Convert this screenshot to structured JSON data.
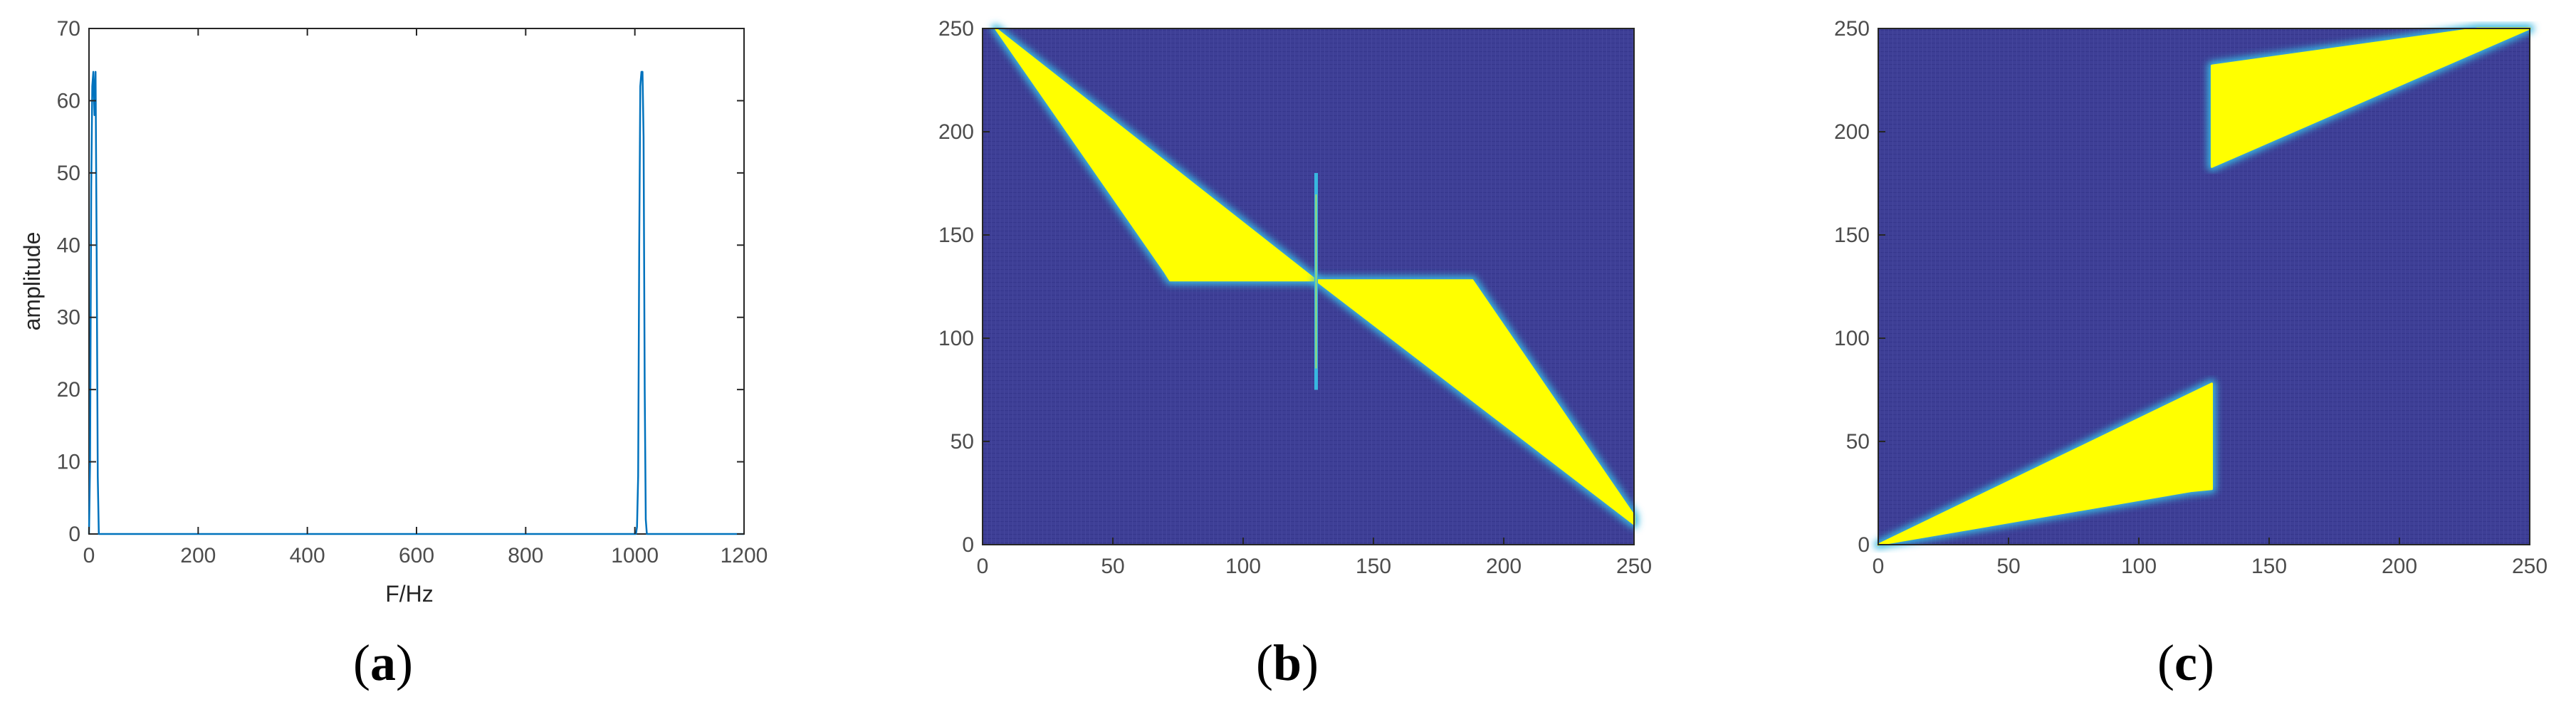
{
  "panels": {
    "a": {
      "caption_open": "(",
      "caption_letter": "a",
      "caption_close": ")"
    },
    "b": {
      "caption_open": "(",
      "caption_letter": "b",
      "caption_close": ")"
    },
    "c": {
      "caption_open": "(",
      "caption_letter": "c",
      "caption_close": ")"
    }
  },
  "colors": {
    "line": "#0072bd",
    "background_field": "#3e3f96",
    "active_region": "#ffff00",
    "edge_glow": "#38b7e0",
    "axis": "#262626"
  },
  "chart_data": [
    {
      "type": "line",
      "panel": "a",
      "title": "",
      "xlabel": "F/Hz",
      "ylabel": "amplitude",
      "xlim": [
        0,
        1200
      ],
      "ylim": [
        0,
        70
      ],
      "xticks": [
        0,
        200,
        400,
        600,
        800,
        1000,
        1200
      ],
      "yticks": [
        0,
        10,
        20,
        30,
        40,
        50,
        60,
        70
      ],
      "grid": false,
      "series": [
        {
          "x": [
            0,
            2,
            4,
            6,
            8,
            10,
            12,
            14,
            16,
            18,
            20,
            22,
            24,
            1000,
            1002,
            1004,
            1006,
            1008,
            1010,
            1012,
            1014,
            1016,
            1018,
            1020,
            1022,
            1024,
            1200
          ],
          "y": [
            0,
            10,
            48,
            62,
            64,
            58,
            64,
            40,
            8,
            0,
            0,
            0,
            0,
            0,
            0,
            1,
            8,
            40,
            62,
            64,
            64,
            55,
            20,
            2,
            0,
            0,
            0
          ]
        }
      ]
    },
    {
      "type": "heatmap",
      "panel": "b",
      "title": "",
      "xlabel": "",
      "ylabel": "",
      "xlim": [
        0,
        250
      ],
      "ylim": [
        0,
        250
      ],
      "xticks": [
        0,
        50,
        100,
        150,
        200,
        250
      ],
      "yticks": [
        0,
        50,
        100,
        150,
        200,
        250
      ],
      "regions": [
        [
          [
            5,
            250
          ],
          [
            128,
            128
          ],
          [
            72,
            128
          ],
          [
            70,
            132
          ]
        ],
        [
          [
            128,
            128
          ],
          [
            250,
            10
          ],
          [
            250,
            14
          ],
          [
            188,
            128
          ]
        ]
      ],
      "line_segments": [
        [
          [
            128,
            75
          ],
          [
            128,
            180
          ]
        ]
      ]
    },
    {
      "type": "heatmap",
      "panel": "c",
      "title": "",
      "xlabel": "",
      "ylabel": "",
      "xlim": [
        0,
        250
      ],
      "ylim": [
        0,
        250
      ],
      "xticks": [
        0,
        50,
        100,
        150,
        200,
        250
      ],
      "yticks": [
        0,
        50,
        100,
        150,
        200,
        250
      ],
      "regions": [
        [
          [
            0,
            0
          ],
          [
            128,
            78
          ],
          [
            128,
            27
          ],
          [
            120,
            26
          ]
        ],
        [
          [
            128,
            183
          ],
          [
            128,
            232
          ],
          [
            230,
            250
          ],
          [
            250,
            250
          ]
        ]
      ],
      "line_segments": []
    }
  ]
}
